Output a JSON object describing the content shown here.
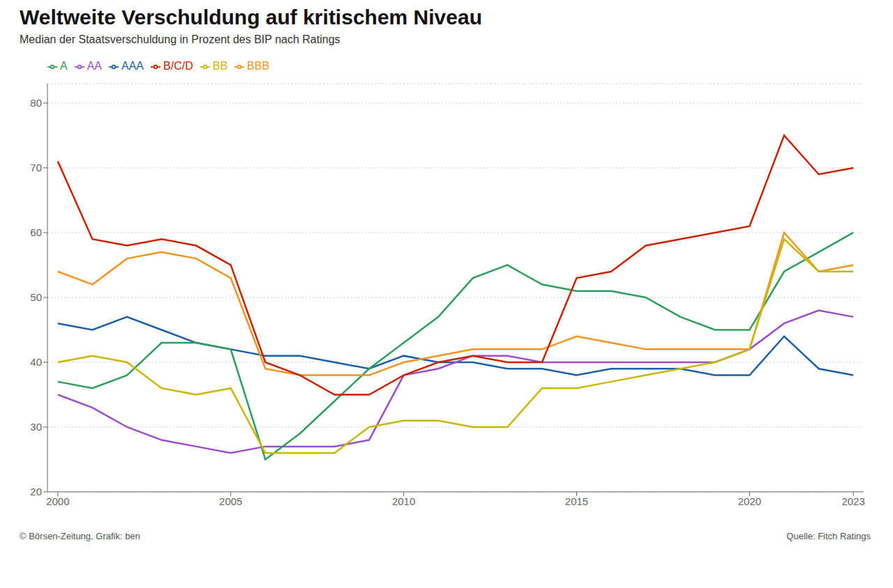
{
  "chart_data": {
    "type": "line",
    "title": "Weltweite Verschuldung auf kritischem Niveau",
    "subtitle": "Median der Staatsverschuldung in Prozent des BIP nach Ratings",
    "annotations": [
      "© Börsen-Zeitung, Grafik: ben",
      "Quelle: Fitch Ratings"
    ],
    "x": [
      2000,
      2001,
      2002,
      2003,
      2004,
      2005,
      2006,
      2007,
      2008,
      2009,
      2010,
      2011,
      2012,
      2013,
      2014,
      2015,
      2016,
      2017,
      2018,
      2019,
      2020,
      2021,
      2022,
      2023
    ],
    "series": [
      {
        "name": "AAA",
        "color": "#1a5fa8",
        "values": [
          46,
          45,
          47,
          45,
          43,
          42,
          41,
          41,
          40,
          39,
          41,
          40,
          40,
          39,
          39,
          38,
          39,
          39,
          39,
          38,
          38,
          44,
          39,
          38
        ]
      },
      {
        "name": "AA",
        "color": "#9b4dca",
        "values": [
          35,
          33,
          30,
          28,
          27,
          26,
          27,
          27,
          27,
          28,
          38,
          39,
          41,
          41,
          40,
          40,
          40,
          40,
          40,
          40,
          42,
          46,
          48,
          47
        ]
      },
      {
        "name": "A",
        "color": "#2ca05a",
        "values": [
          37,
          36,
          38,
          43,
          43,
          42,
          25,
          29,
          34,
          39,
          43,
          47,
          53,
          55,
          52,
          51,
          51,
          50,
          47,
          45,
          45,
          54,
          57,
          60
        ]
      },
      {
        "name": "BBB",
        "color": "#f5941e",
        "values": [
          54,
          52,
          56,
          57,
          56,
          53,
          39,
          38,
          38,
          38,
          40,
          41,
          42,
          42,
          42,
          44,
          43,
          42,
          42,
          42,
          42,
          60,
          54,
          55
        ]
      },
      {
        "name": "BB",
        "color": "#c8b800",
        "values": [
          40,
          41,
          40,
          36,
          35,
          36,
          26,
          26,
          26,
          30,
          31,
          31,
          30,
          30,
          36,
          36,
          37,
          38,
          39,
          40,
          42,
          59,
          54,
          54
        ]
      },
      {
        "name": "B/C/D",
        "color": "#cc2200",
        "values": [
          71,
          59,
          58,
          59,
          58,
          55,
          40,
          38,
          35,
          35,
          38,
          40,
          41,
          40,
          40,
          53,
          54,
          58,
          59,
          60,
          61,
          75,
          69,
          70
        ]
      }
    ],
    "xlim": [
      1999.7,
      2023.3
    ],
    "xticks": [
      2000,
      2005,
      2010,
      2015,
      2020,
      2023
    ],
    "ylim": [
      20,
      83
    ],
    "yticks": [
      20,
      30,
      40,
      50,
      60,
      70,
      80
    ],
    "grid": true,
    "legend": "upper left"
  }
}
